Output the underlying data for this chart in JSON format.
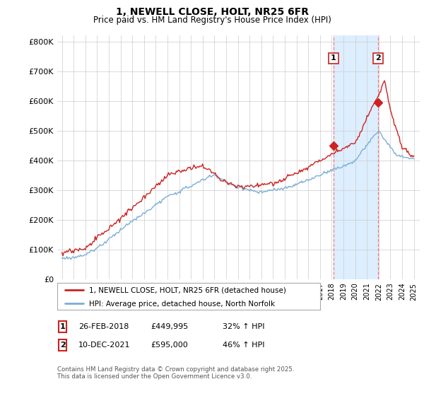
{
  "title": "1, NEWELL CLOSE, HOLT, NR25 6FR",
  "subtitle": "Price paid vs. HM Land Registry's House Price Index (HPI)",
  "ylabel_ticks": [
    "£0",
    "£100K",
    "£200K",
    "£300K",
    "£400K",
    "£500K",
    "£600K",
    "£700K",
    "£800K"
  ],
  "ytick_vals": [
    0,
    100000,
    200000,
    300000,
    400000,
    500000,
    600000,
    700000,
    800000
  ],
  "ylim": [
    0,
    820000
  ],
  "xlim_start": 1994.6,
  "xlim_end": 2025.5,
  "hpi_color": "#7bafd4",
  "price_color": "#cc2222",
  "dashed_color": "#f08080",
  "span_color": "#ddeeff",
  "legend_label_price": "1, NEWELL CLOSE, HOLT, NR25 6FR (detached house)",
  "legend_label_hpi": "HPI: Average price, detached house, North Norfolk",
  "annotation1_label": "1",
  "annotation1_date": "26-FEB-2018",
  "annotation1_price": "£449,995",
  "annotation1_hpi": "32% ↑ HPI",
  "annotation2_label": "2",
  "annotation2_date": "10-DEC-2021",
  "annotation2_price": "£595,000",
  "annotation2_hpi": "46% ↑ HPI",
  "footnote": "Contains HM Land Registry data © Crown copyright and database right 2025.\nThis data is licensed under the Open Government Licence v3.0.",
  "sale1_x": 2018.15,
  "sale1_y": 449995,
  "sale2_x": 2021.94,
  "sale2_y": 595000
}
